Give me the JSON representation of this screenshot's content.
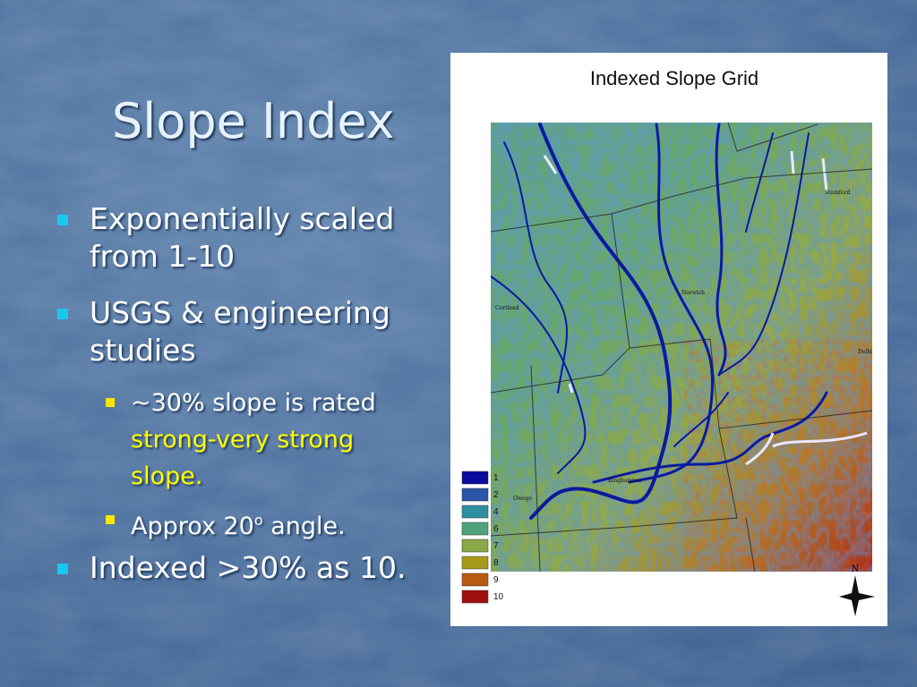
{
  "slide": {
    "title": "Slope Index",
    "bullets": [
      {
        "text": "Exponentially scaled from 1-10"
      },
      {
        "text": "USGS & engineering studies",
        "sub_bullets": [
          {
            "text": "~30% slope is rated ",
            "highlight": "strong-very strong slope."
          },
          {
            "text": "Approx 20",
            "superscript": "o",
            "after": " angle."
          }
        ]
      },
      {
        "text": "Indexed >30% as 10."
      }
    ]
  },
  "map": {
    "title": "Indexed Slope Grid",
    "legend": [
      {
        "label": "1",
        "color": "#0a0a9c"
      },
      {
        "label": "2",
        "color": "#2a55a8"
      },
      {
        "label": "4",
        "color": "#2e8fa0"
      },
      {
        "label": "6",
        "color": "#4fa37a"
      },
      {
        "label": "7",
        "color": "#8aa848"
      },
      {
        "label": "8",
        "color": "#a89a1a"
      },
      {
        "label": "9",
        "color": "#b85a10"
      },
      {
        "label": "10",
        "color": "#a01010"
      }
    ],
    "places": [
      {
        "label": "Stamford"
      },
      {
        "label": "Norwich"
      },
      {
        "label": "Cortland"
      },
      {
        "label": "Delhi"
      },
      {
        "label": "Binghamton"
      },
      {
        "label": "Owego"
      }
    ],
    "compass": "N"
  }
}
